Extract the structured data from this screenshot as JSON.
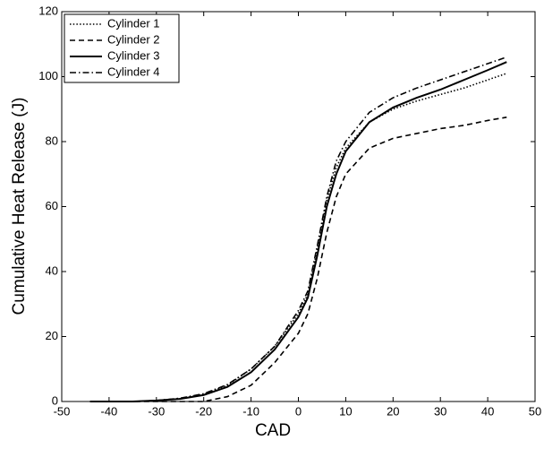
{
  "chart_data": {
    "type": "line",
    "xlabel": "CAD",
    "ylabel": "Cumulative Heat Release (J)",
    "x": [
      -44,
      -40,
      -35,
      -30,
      -25,
      -20,
      -15,
      -10,
      -5,
      0,
      2,
      4,
      6,
      8,
      10,
      15,
      20,
      25,
      30,
      35,
      40,
      44
    ],
    "series": [
      {
        "name": "Cylinder 1",
        "color": "#000000",
        "linestyle": "dotted",
        "values": [
          0,
          0,
          0,
          0.3,
          0.9,
          2.2,
          5,
          10,
          17,
          27,
          33,
          47,
          62,
          72,
          78,
          86,
          90,
          92.5,
          94.5,
          96.5,
          99,
          101
        ]
      },
      {
        "name": "Cylinder 2",
        "color": "#000000",
        "linestyle": "dashed",
        "values": [
          0,
          0,
          0,
          0,
          0,
          0,
          1.5,
          5,
          12,
          21,
          27,
          38,
          52,
          63,
          70,
          78,
          81,
          82.5,
          84,
          85,
          86.5,
          87.5
        ]
      },
      {
        "name": "Cylinder 3",
        "color": "#000000",
        "linestyle": "solid",
        "values": [
          0,
          0,
          0,
          0.3,
          0.8,
          2,
          4.5,
          9,
          16,
          26,
          32,
          45,
          60,
          70,
          77,
          86,
          90.5,
          93.5,
          96,
          99,
          102,
          104.5
        ]
      },
      {
        "name": "Cylinder 4",
        "color": "#000000",
        "linestyle": "dashdot",
        "values": [
          0,
          0,
          0,
          0.3,
          1,
          2.4,
          5.2,
          10,
          17,
          28,
          34,
          48,
          63,
          74,
          80,
          89,
          93.5,
          96.5,
          99,
          101.5,
          104,
          106
        ]
      }
    ],
    "xlim": [
      -50,
      50
    ],
    "xticks": [
      -50,
      -40,
      -30,
      -20,
      -10,
      0,
      10,
      20,
      30,
      40,
      50
    ],
    "ylim": [
      0,
      120
    ],
    "yticks": [
      0,
      20,
      40,
      60,
      80,
      100,
      120
    ],
    "grid": false,
    "legend": "upper-left"
  }
}
